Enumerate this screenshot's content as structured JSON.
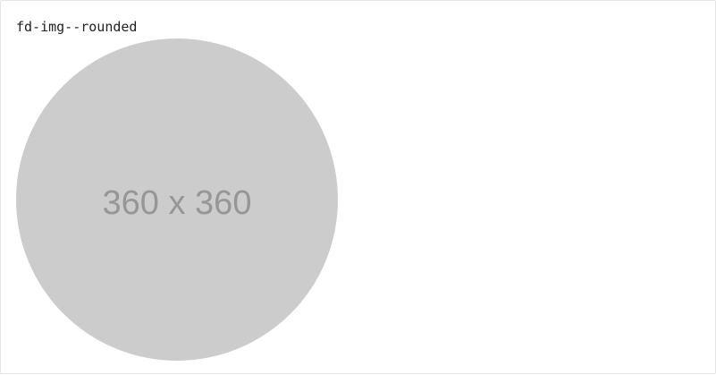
{
  "demo": {
    "class_label": "fd-img--rounded",
    "placeholder_label": "360 x 360",
    "placeholder_bg": "#cccccc",
    "placeholder_fg": "#969696"
  }
}
